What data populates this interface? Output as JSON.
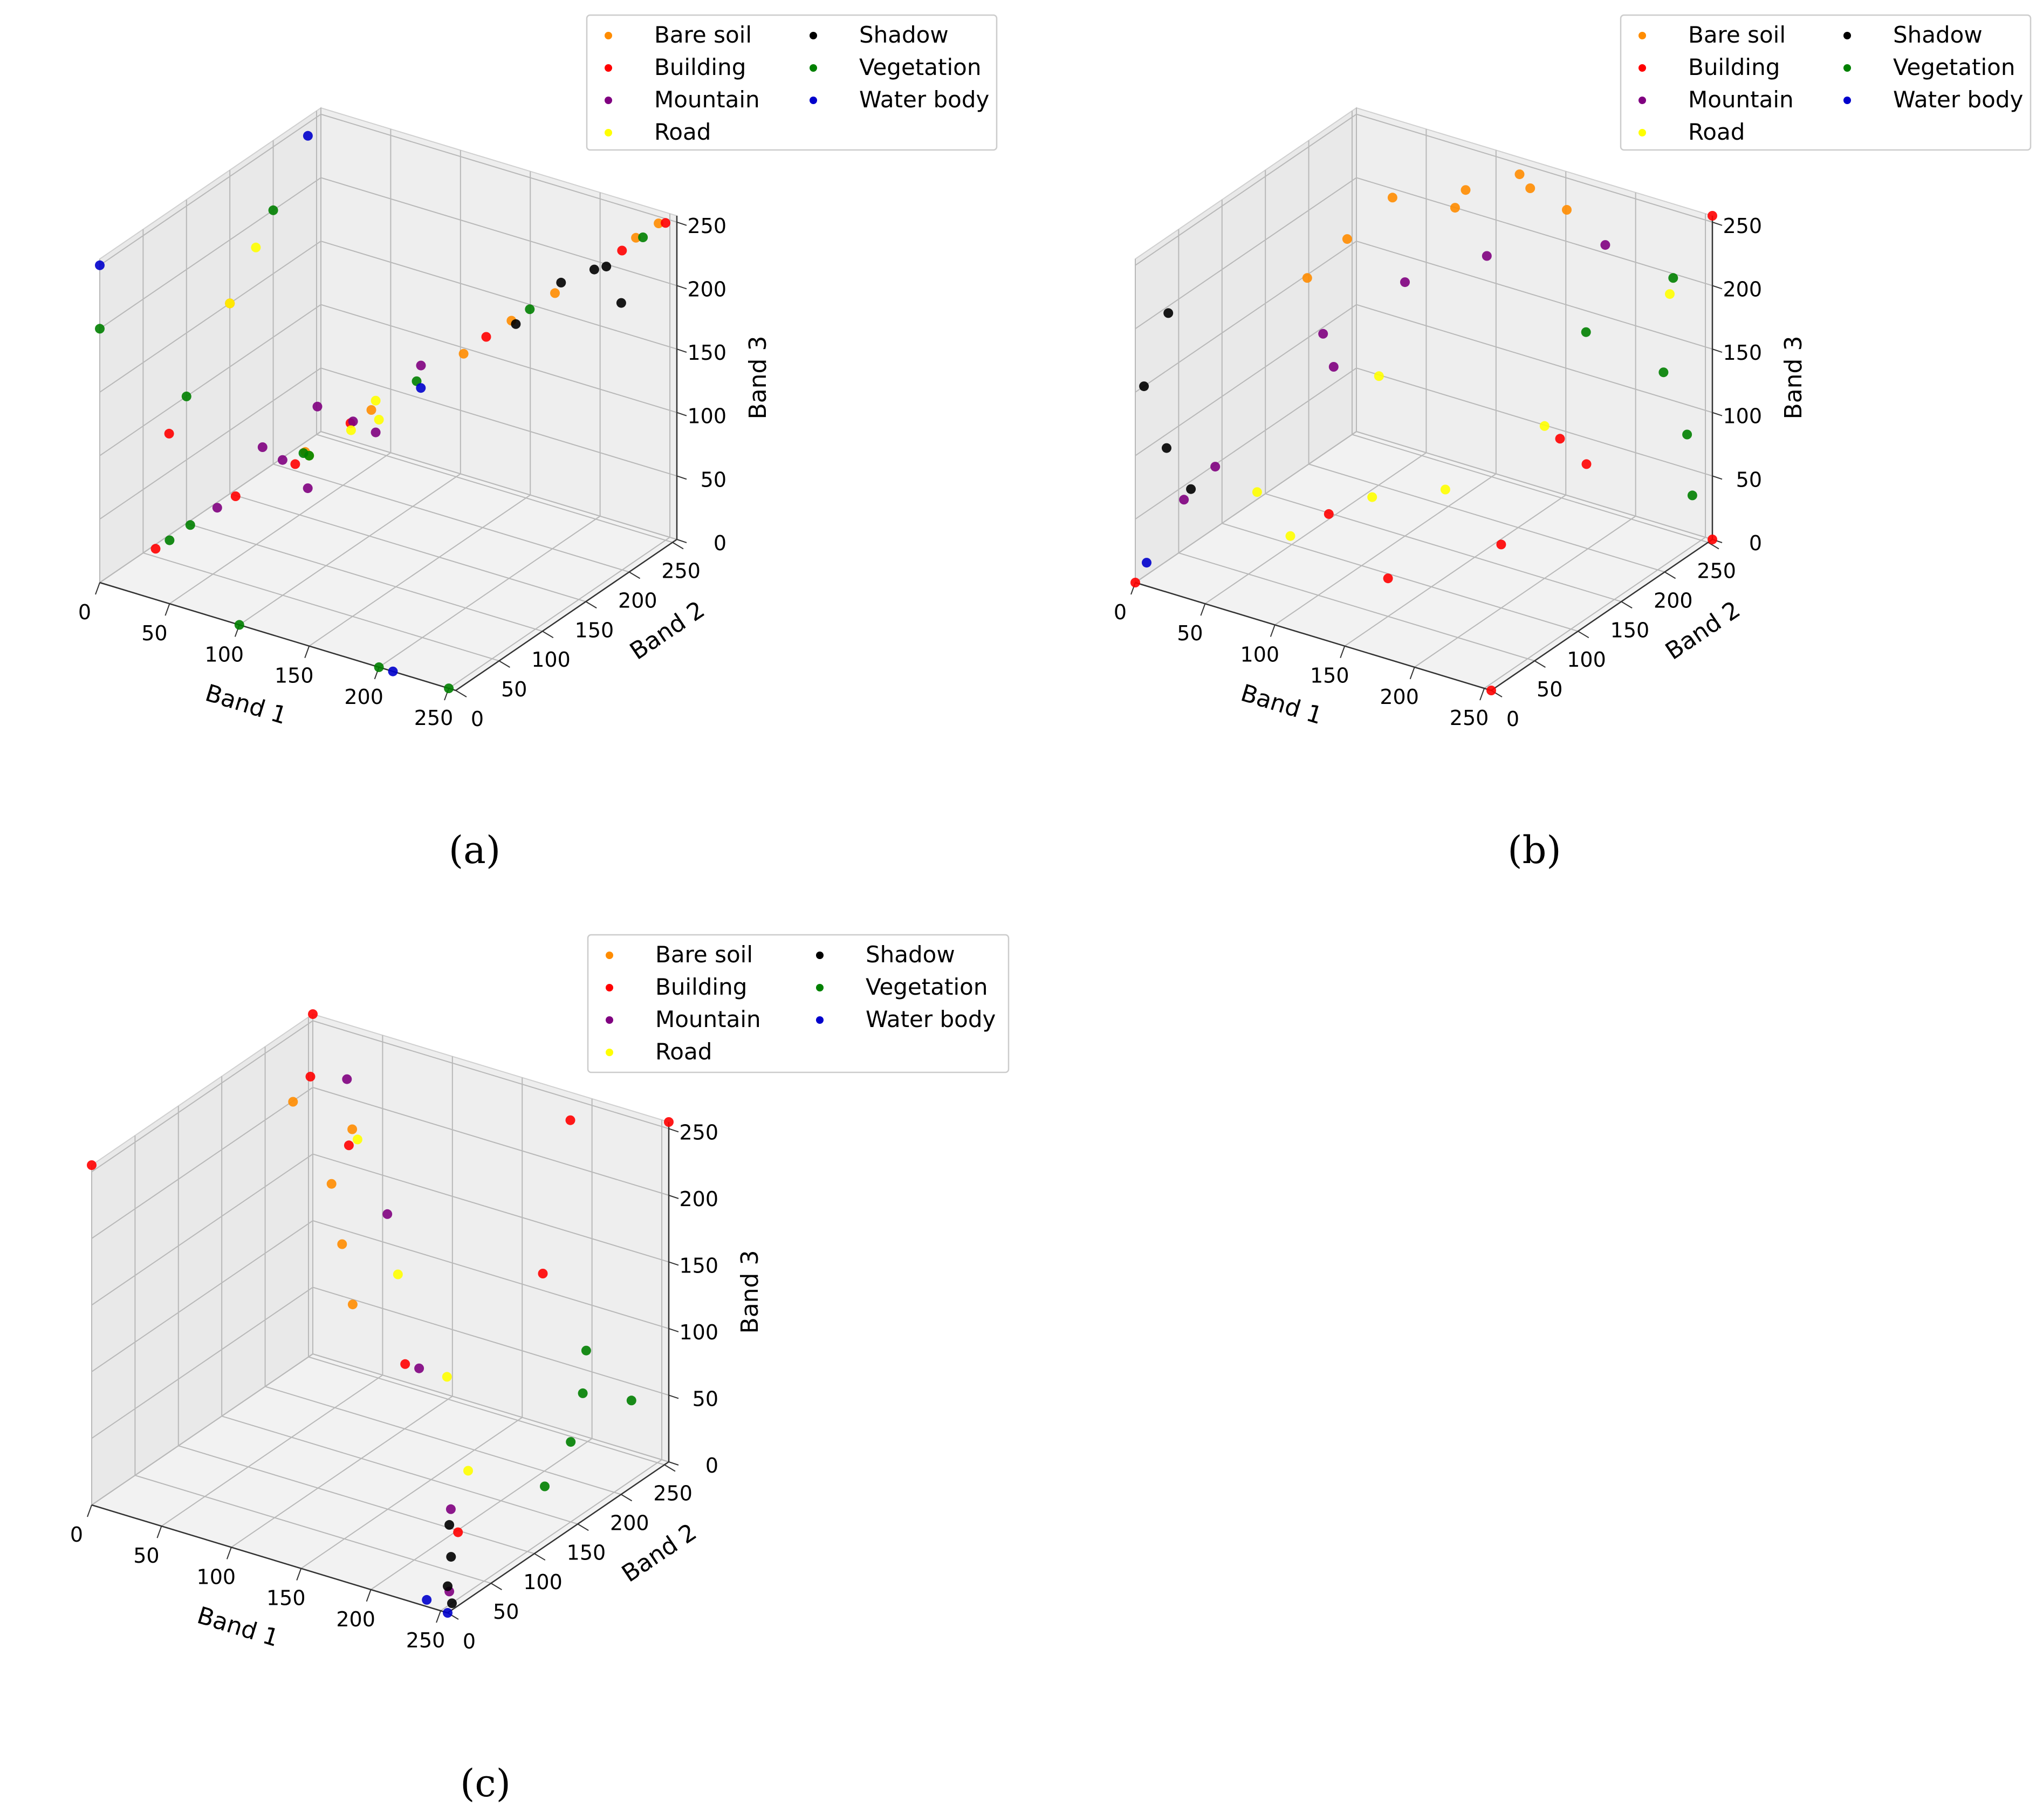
{
  "chart_data": [
    {
      "type": "scatter3d",
      "panel_label": "(a)",
      "xlabel": "Band 1",
      "ylabel": "Band 2",
      "zlabel": "Band 3",
      "xlim": [
        0,
        255
      ],
      "ylim": [
        0,
        255
      ],
      "zlim": [
        0,
        255
      ],
      "xticks": [
        0,
        50,
        100,
        150,
        200,
        250
      ],
      "yticks": [
        0,
        50,
        100,
        150,
        200,
        250
      ],
      "zticks": [
        0,
        50,
        100,
        150,
        200,
        250
      ],
      "grid": true,
      "legend": {
        "location": "top-right",
        "columns": 2
      },
      "series": [
        {
          "name": "Bare soil",
          "color": "#ff8c00",
          "points": [
            [
              120,
              120,
              120
            ],
            [
              160,
              162,
              158
            ],
            [
              200,
              203,
              200
            ],
            [
              235,
              240,
              238
            ],
            [
              245,
              250,
              248
            ],
            [
              180,
              185,
              180
            ],
            [
              90,
              92,
              90
            ]
          ]
        },
        {
          "name": "Building",
          "color": "#ff0000",
          "points": [
            [
              60,
              60,
              60
            ],
            [
              110,
              112,
              110
            ],
            [
              170,
              172,
              170
            ],
            [
              230,
              232,
              230
            ],
            [
              250,
              250,
              250
            ],
            [
              40,
              0,
              40
            ],
            [
              0,
              80,
              80
            ],
            [
              140,
              0,
              140
            ],
            [
              0,
              150,
              150
            ]
          ]
        },
        {
          "name": "Mountain",
          "color": "#800080",
          "points": [
            [
              50,
              55,
              50
            ],
            [
              80,
              82,
              85
            ],
            [
              110,
              115,
              110
            ],
            [
              140,
              145,
              150
            ],
            [
              90,
              95,
              60
            ],
            [
              100,
              90,
              130
            ],
            [
              120,
              125,
              100
            ],
            [
              70,
              75,
              95
            ]
          ]
        },
        {
          "name": "Road",
          "color": "#ffff00",
          "points": [
            [
              150,
              0,
              150
            ],
            [
              180,
              0,
              180
            ],
            [
              0,
              150,
              150
            ],
            [
              0,
              180,
              180
            ],
            [
              120,
              125,
              125
            ],
            [
              200,
              0,
              195
            ]
          ]
        },
        {
          "name": "Shadow",
          "color": "#000000",
          "points": [
            [
              220,
              230,
              215
            ],
            [
              230,
              200,
              230
            ],
            [
              240,
              215,
              200
            ],
            [
              180,
              190,
              175
            ],
            [
              200,
              210,
              205
            ]
          ]
        },
        {
          "name": "Vegetation",
          "color": "#008000",
          "points": [
            [
              40,
              40,
              40
            ],
            [
              90,
              90,
              90
            ],
            [
              140,
              140,
              140
            ],
            [
              190,
              190,
              190
            ],
            [
              240,
              240,
              240
            ],
            [
              50,
              0,
              50
            ],
            [
              150,
              0,
              150
            ],
            [
              0,
              100,
              100
            ],
            [
              0,
              200,
              200
            ],
            [
              0,
              0,
              200
            ],
            [
              100,
              0,
              0
            ],
            [
              200,
              0,
              0
            ],
            [
              250,
              0,
              0
            ]
          ]
        },
        {
          "name": "Water body",
          "color": "#0000cc",
          "points": [
            [
              230,
              0,
              230
            ],
            [
              210,
              0,
              0
            ],
            [
              0,
              0,
              250
            ],
            [
              0,
              240,
              240
            ]
          ]
        }
      ]
    },
    {
      "type": "scatter3d",
      "panel_label": "(b)",
      "xlabel": "Band 1",
      "ylabel": "Band 2",
      "zlabel": "Band 3",
      "xlim": [
        0,
        255
      ],
      "ylim": [
        0,
        255
      ],
      "zlim": [
        0,
        255
      ],
      "xticks": [
        0,
        50,
        100,
        150,
        200,
        250
      ],
      "yticks": [
        0,
        50,
        100,
        150,
        200,
        250
      ],
      "zticks": [
        0,
        50,
        100,
        150,
        200,
        250
      ],
      "grid": true,
      "legend": {
        "location": "top-right",
        "columns": 2
      },
      "series": [
        {
          "name": "Bare soil",
          "color": "#ff8c00",
          "points": [
            [
              60,
              200,
              230
            ],
            [
              100,
              220,
              240
            ],
            [
              140,
              230,
              250
            ],
            [
              80,
              240,
              210
            ],
            [
              40,
              180,
              200
            ],
            [
              120,
              250,
              245
            ],
            [
              160,
              240,
              235
            ],
            [
              30,
              150,
              180
            ]
          ]
        },
        {
          "name": "Building",
          "color": "#ff0000",
          "points": [
            [
              255,
              0,
              0
            ],
            [
              255,
              255,
              0
            ],
            [
              255,
              255,
              255
            ],
            [
              0,
              0,
              0
            ],
            [
              200,
              100,
              50
            ],
            [
              150,
              50,
              30
            ],
            [
              230,
              150,
              100
            ],
            [
              180,
              200,
              80
            ],
            [
              120,
              30,
              80
            ]
          ]
        },
        {
          "name": "Mountain",
          "color": "#800080",
          "points": [
            [
              10,
              40,
              50
            ],
            [
              60,
              120,
              160
            ],
            [
              100,
              150,
              200
            ],
            [
              140,
              180,
              220
            ],
            [
              20,
              60,
              70
            ],
            [
              200,
              220,
              230
            ],
            [
              80,
              100,
              150
            ]
          ]
        },
        {
          "name": "Road",
          "color": "#ffff00",
          "points": [
            [
              80,
              50,
              40
            ],
            [
              120,
              80,
              70
            ],
            [
              160,
              100,
              80
            ],
            [
              200,
              150,
              120
            ],
            [
              100,
              120,
              140
            ],
            [
              240,
              230,
              200
            ],
            [
              50,
              60,
              60
            ]
          ]
        },
        {
          "name": "Shadow",
          "color": "#000000",
          "points": [
            [
              0,
              10,
              150
            ],
            [
              5,
              30,
              200
            ],
            [
              10,
              20,
              100
            ],
            [
              15,
              40,
              60
            ]
          ]
        },
        {
          "name": "Vegetation",
          "color": "#008000",
          "points": [
            [
              240,
              250,
              80
            ],
            [
              220,
              255,
              120
            ],
            [
              250,
              240,
              40
            ],
            [
              180,
              230,
              150
            ],
            [
              230,
              250,
              200
            ]
          ]
        },
        {
          "name": "Water body",
          "color": "#0000cc",
          "points": [
            [
              5,
              5,
              15
            ]
          ]
        }
      ]
    },
    {
      "type": "scatter3d",
      "panel_label": "(c)",
      "xlabel": "Band 1",
      "ylabel": "Band 2",
      "zlabel": "Band 3",
      "xlim": [
        0,
        255
      ],
      "ylim": [
        0,
        255
      ],
      "zlim": [
        0,
        255
      ],
      "xticks": [
        0,
        50,
        100,
        150,
        200,
        250
      ],
      "yticks": [
        0,
        50,
        100,
        150,
        200,
        250
      ],
      "zticks": [
        0,
        50,
        100,
        150,
        200,
        250
      ],
      "grid": true,
      "legend": {
        "location": "top-right",
        "columns": 2
      },
      "series": [
        {
          "name": "Bare soil",
          "color": "#ff8c00",
          "points": [
            [
              20,
              200,
              220
            ],
            [
              60,
              180,
              180
            ],
            [
              80,
              160,
              150
            ],
            [
              100,
              140,
              120
            ],
            [
              50,
              220,
              200
            ]
          ]
        },
        {
          "name": "Building",
          "color": "#ff0000",
          "points": [
            [
              0,
              255,
              255
            ],
            [
              255,
              255,
              255
            ],
            [
              0,
              0,
              255
            ],
            [
              20,
              220,
              230
            ],
            [
              200,
              230,
              250
            ],
            [
              230,
              150,
              180
            ],
            [
              150,
              120,
              100
            ],
            [
              250,
              20,
              50
            ],
            [
              60,
              200,
              200
            ]
          ]
        },
        {
          "name": "Mountain",
          "color": "#800080",
          "points": [
            [
              40,
              230,
              230
            ],
            [
              100,
              180,
              170
            ],
            [
              160,
              120,
              100
            ],
            [
              220,
              60,
              40
            ],
            [
              250,
              10,
              10
            ]
          ]
        },
        {
          "name": "Road",
          "color": "#ffff00",
          "points": [
            [
              60,
              210,
              200
            ],
            [
              120,
              160,
              140
            ],
            [
              180,
              120,
              100
            ],
            [
              220,
              80,
              60
            ]
          ]
        },
        {
          "name": "Shadow",
          "color": "#000000",
          "points": [
            [
              255,
              5,
              5
            ],
            [
              245,
              20,
              30
            ],
            [
              250,
              10,
              60
            ],
            [
              255,
              0,
              20
            ]
          ]
        },
        {
          "name": "Vegetation",
          "color": "#008000",
          "points": [
            [
              250,
              150,
              60
            ],
            [
              240,
              180,
              80
            ],
            [
              250,
              120,
              40
            ],
            [
              230,
              200,
              100
            ],
            [
              250,
              220,
              60
            ]
          ]
        },
        {
          "name": "Water body",
          "color": "#0000cc",
          "points": [
            [
              255,
              0,
              0
            ],
            [
              240,
              0,
              5
            ]
          ]
        }
      ]
    }
  ]
}
